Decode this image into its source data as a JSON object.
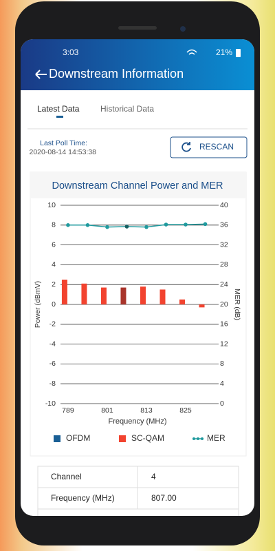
{
  "status_bar": {
    "time": "3:03",
    "battery": "21%"
  },
  "header": {
    "title": "Downstream Information"
  },
  "tabs": [
    "Latest Data",
    "Historical Data"
  ],
  "poll": {
    "label": "Last Poll Time:",
    "time": "2020-08-14 14:53:38"
  },
  "button": "RESCAN",
  "chart_data": {
    "type": "bar",
    "title": "Downstream Channel Power and MER",
    "x_label": "Frequency (MHz)",
    "y_label": "Power (dBmV)",
    "y2_label": "MER (dB)",
    "x": [
      789,
      795,
      801,
      807,
      813,
      819,
      825,
      831
    ],
    "xlim": [
      786.7,
      835.1
    ],
    "xticks": [
      789,
      801,
      813,
      825
    ],
    "ylim": [
      -10,
      10
    ],
    "yticks": [
      -10,
      -8,
      -6,
      -4,
      -2,
      0,
      2,
      4,
      6,
      8,
      10
    ],
    "y2lim": [
      0,
      40
    ],
    "y2ticks": [
      0,
      4,
      8,
      12,
      16,
      20,
      24,
      28,
      32,
      36,
      40
    ],
    "grid": true,
    "highlight": 3,
    "highlight_color": "#a9342b",
    "series": [
      {
        "name": "OFDM",
        "color": "#1a5f95",
        "values": [
          null,
          null,
          null,
          null,
          null,
          null,
          null,
          null
        ]
      },
      {
        "name": "SC-QAM",
        "color": "#f2432f",
        "values": [
          2.5,
          2.1,
          1.7,
          1.7,
          1.8,
          1.5,
          0.5,
          -0.3
        ]
      },
      {
        "name": "MER",
        "color": "#1f9a9e",
        "type": "line",
        "axis": "y2",
        "values": [
          36,
          36,
          35.6,
          35.7,
          35.6,
          36.1,
          36.1,
          36.2
        ]
      }
    ]
  },
  "table": {
    "rows": [
      [
        "Channel",
        "4"
      ],
      [
        "Frequency (MHz)",
        "807.00"
      ]
    ]
  }
}
